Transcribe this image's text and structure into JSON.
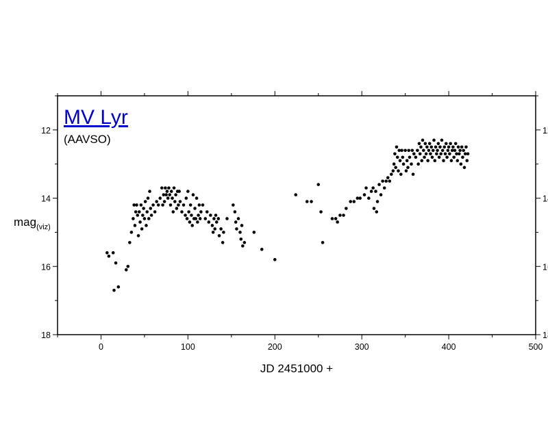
{
  "chart_data": {
    "type": "scatter",
    "title": "MV Lyr",
    "subtitle": "(AAVSO)",
    "xlabel": "JD 2451000 +",
    "ylabel": "mag",
    "ylabel_subscript": "(viz)",
    "xlim": [
      -50,
      500
    ],
    "ylim": [
      18,
      11
    ],
    "y_inverted": true,
    "x_ticks": [
      0,
      100,
      200,
      300,
      400,
      500
    ],
    "y_ticks": [
      12,
      14,
      16,
      18
    ],
    "grid": false,
    "marker_color": "#000000",
    "title_color": "#0000cc",
    "series": [
      {
        "points": [
          [
            7,
            15.6
          ],
          [
            9,
            15.7
          ],
          [
            14,
            15.6
          ],
          [
            15,
            16.7
          ],
          [
            17,
            15.9
          ],
          [
            20,
            16.6
          ],
          [
            29,
            16.1
          ],
          [
            31,
            16.0
          ],
          [
            33,
            15.3
          ],
          [
            35,
            15.0
          ],
          [
            37,
            14.6
          ],
          [
            38,
            14.2
          ],
          [
            39,
            14.8
          ],
          [
            40,
            14.4
          ],
          [
            41,
            14.2
          ],
          [
            42,
            14.5
          ],
          [
            43,
            15.1
          ],
          [
            44,
            14.4
          ],
          [
            45,
            14.7
          ],
          [
            46,
            14.2
          ],
          [
            47,
            14.9
          ],
          [
            48,
            14.5
          ],
          [
            49,
            14.3
          ],
          [
            50,
            14.6
          ],
          [
            51,
            14.1
          ],
          [
            52,
            14.8
          ],
          [
            53,
            14.4
          ],
          [
            54,
            14.0
          ],
          [
            55,
            14.6
          ],
          [
            56,
            13.8
          ],
          [
            57,
            14.3
          ],
          [
            58,
            14.5
          ],
          [
            60,
            14.2
          ],
          [
            62,
            14.4
          ],
          [
            64,
            14.1
          ],
          [
            66,
            14.2
          ],
          [
            68,
            14.0
          ],
          [
            70,
            13.7
          ],
          [
            71,
            14.2
          ],
          [
            72,
            13.9
          ],
          [
            73,
            14.1
          ],
          [
            74,
            13.7
          ],
          [
            75,
            13.9
          ],
          [
            76,
            13.8
          ],
          [
            77,
            14.0
          ],
          [
            78,
            13.7
          ],
          [
            79,
            13.9
          ],
          [
            80,
            14.2
          ],
          [
            81,
            13.8
          ],
          [
            82,
            14.0
          ],
          [
            83,
            14.4
          ],
          [
            84,
            13.7
          ],
          [
            85,
            14.1
          ],
          [
            86,
            13.9
          ],
          [
            87,
            14.3
          ],
          [
            88,
            13.8
          ],
          [
            89,
            14.2
          ],
          [
            90,
            13.8
          ],
          [
            91,
            14.1
          ],
          [
            93,
            14.4
          ],
          [
            95,
            14.2
          ],
          [
            97,
            14.5
          ],
          [
            98,
            14.0
          ],
          [
            99,
            14.6
          ],
          [
            100,
            13.8
          ],
          [
            101,
            14.4
          ],
          [
            102,
            14.7
          ],
          [
            103,
            14.2
          ],
          [
            104,
            14.5
          ],
          [
            105,
            14.8
          ],
          [
            106,
            13.9
          ],
          [
            107,
            14.6
          ],
          [
            108,
            14.3
          ],
          [
            109,
            14.6
          ],
          [
            110,
            14.0
          ],
          [
            111,
            14.7
          ],
          [
            112,
            14.5
          ],
          [
            113,
            14.2
          ],
          [
            114,
            14.6
          ],
          [
            115,
            14.4
          ],
          [
            117,
            14.2
          ],
          [
            120,
            14.6
          ],
          [
            122,
            14.4
          ],
          [
            124,
            14.7
          ],
          [
            126,
            14.5
          ],
          [
            128,
            14.8
          ],
          [
            129,
            15.0
          ],
          [
            130,
            14.6
          ],
          [
            131,
            14.9
          ],
          [
            132,
            14.5
          ],
          [
            133,
            14.7
          ],
          [
            135,
            14.6
          ],
          [
            136,
            15.1
          ],
          [
            138,
            14.9
          ],
          [
            140,
            15.3
          ],
          [
            141,
            15.0
          ],
          [
            145,
            14.6
          ],
          [
            152,
            14.2
          ],
          [
            154,
            14.4
          ],
          [
            155,
            14.7
          ],
          [
            156,
            14.9
          ],
          [
            158,
            14.6
          ],
          [
            160,
            15.0
          ],
          [
            161,
            15.2
          ],
          [
            162,
            14.8
          ],
          [
            163,
            15.4
          ],
          [
            165,
            15.3
          ],
          [
            176,
            15.0
          ],
          [
            185,
            15.5
          ],
          [
            200,
            15.8
          ],
          [
            224,
            13.9
          ],
          [
            237,
            14.1
          ],
          [
            242,
            14.1
          ],
          [
            250,
            13.6
          ],
          [
            253,
            14.4
          ],
          [
            255,
            15.3
          ],
          [
            266,
            14.6
          ],
          [
            270,
            14.6
          ],
          [
            272,
            14.7
          ],
          [
            275,
            14.5
          ],
          [
            279,
            14.5
          ],
          [
            282,
            14.3
          ],
          [
            287,
            14.1
          ],
          [
            291,
            14.1
          ],
          [
            295,
            14.0
          ],
          [
            298,
            14.0
          ],
          [
            303,
            13.9
          ],
          [
            305,
            13.7
          ],
          [
            308,
            14.0
          ],
          [
            311,
            13.8
          ],
          [
            313,
            13.7
          ],
          [
            314,
            14.3
          ],
          [
            316,
            13.8
          ],
          [
            317,
            14.4
          ],
          [
            318,
            14.1
          ],
          [
            320,
            13.6
          ],
          [
            322,
            13.9
          ],
          [
            324,
            13.5
          ],
          [
            326,
            13.7
          ],
          [
            328,
            13.5
          ],
          [
            330,
            13.4
          ],
          [
            332,
            13.5
          ],
          [
            334,
            13.3
          ],
          [
            336,
            13.2
          ],
          [
            337,
            13.0
          ],
          [
            338,
            12.7
          ],
          [
            339,
            13.1
          ],
          [
            340,
            12.5
          ],
          [
            341,
            12.8
          ],
          [
            342,
            13.2
          ],
          [
            343,
            12.6
          ],
          [
            344,
            12.9
          ],
          [
            345,
            13.3
          ],
          [
            346,
            12.6
          ],
          [
            347,
            12.8
          ],
          [
            348,
            13.0
          ],
          [
            350,
            12.6
          ],
          [
            351,
            13.2
          ],
          [
            352,
            12.9
          ],
          [
            353,
            13.1
          ],
          [
            354,
            12.6
          ],
          [
            355,
            12.8
          ],
          [
            357,
            13.0
          ],
          [
            358,
            12.6
          ],
          [
            359,
            13.3
          ],
          [
            360,
            12.7
          ],
          [
            362,
            12.8
          ],
          [
            364,
            12.6
          ],
          [
            365,
            13.0
          ],
          [
            366,
            12.4
          ],
          [
            367,
            12.7
          ],
          [
            368,
            12.5
          ],
          [
            369,
            12.9
          ],
          [
            370,
            12.3
          ],
          [
            371,
            12.6
          ],
          [
            372,
            12.8
          ],
          [
            373,
            12.4
          ],
          [
            374,
            12.7
          ],
          [
            375,
            12.5
          ],
          [
            376,
            12.9
          ],
          [
            377,
            12.6
          ],
          [
            378,
            12.4
          ],
          [
            379,
            12.7
          ],
          [
            380,
            12.5
          ],
          [
            381,
            12.8
          ],
          [
            382,
            12.6
          ],
          [
            383,
            12.3
          ],
          [
            384,
            12.9
          ],
          [
            385,
            12.5
          ],
          [
            386,
            12.7
          ],
          [
            387,
            12.6
          ],
          [
            388,
            12.4
          ],
          [
            389,
            12.8
          ],
          [
            390,
            12.5
          ],
          [
            391,
            12.7
          ],
          [
            392,
            12.3
          ],
          [
            393,
            12.6
          ],
          [
            394,
            12.9
          ],
          [
            395,
            12.5
          ],
          [
            396,
            12.7
          ],
          [
            397,
            12.4
          ],
          [
            398,
            12.8
          ],
          [
            399,
            12.6
          ],
          [
            400,
            12.5
          ],
          [
            401,
            12.7
          ],
          [
            402,
            12.4
          ],
          [
            403,
            12.9
          ],
          [
            404,
            12.6
          ],
          [
            405,
            12.5
          ],
          [
            406,
            12.8
          ],
          [
            407,
            12.6
          ],
          [
            408,
            12.4
          ],
          [
            409,
            12.7
          ],
          [
            410,
            12.9
          ],
          [
            411,
            12.5
          ],
          [
            412,
            12.7
          ],
          [
            413,
            12.6
          ],
          [
            414,
            13.0
          ],
          [
            415,
            12.5
          ],
          [
            416,
            12.8
          ],
          [
            417,
            12.6
          ],
          [
            418,
            13.1
          ],
          [
            419,
            12.7
          ],
          [
            420,
            12.5
          ],
          [
            421,
            12.9
          ],
          [
            422,
            12.7
          ]
        ]
      }
    ]
  }
}
